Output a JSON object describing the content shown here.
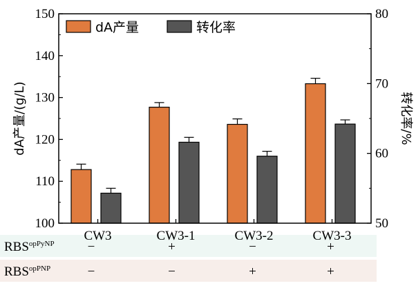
{
  "chart_data": {
    "type": "bar",
    "categories": [
      "CW3",
      "CW3-1",
      "CW3-2",
      "CW3-3"
    ],
    "series": [
      {
        "name": "dA产量",
        "axis": "left",
        "color": "#E07B3E",
        "values": [
          112.8,
          127.7,
          123.6,
          133.3
        ],
        "errors": [
          1.3,
          1.1,
          1.3,
          1.3
        ]
      },
      {
        "name": "转化率",
        "axis": "right",
        "color": "#555555",
        "values": [
          54.3,
          61.6,
          59.6,
          64.2
        ],
        "errors": [
          0.7,
          0.7,
          0.7,
          0.6
        ]
      }
    ],
    "ylabel": "dA产量/(g/L)",
    "ylim": [
      100,
      150
    ],
    "yticks": [
      100,
      110,
      120,
      130,
      140,
      150
    ],
    "y2label": "转化率/%",
    "y2lim": [
      50,
      80
    ],
    "y2ticks": [
      50,
      60,
      70,
      80
    ],
    "legend": "top-left",
    "grid": false
  },
  "conditions": [
    {
      "label": "RBS",
      "sup": "opPyNP",
      "values": [
        "−",
        "+",
        "−",
        "+"
      ],
      "bg": "#EEF7F4"
    },
    {
      "label": "RBS",
      "sup": "opPNP",
      "values": [
        "−",
        "−",
        "+",
        "+"
      ],
      "bg": "#F7EEEA"
    }
  ]
}
